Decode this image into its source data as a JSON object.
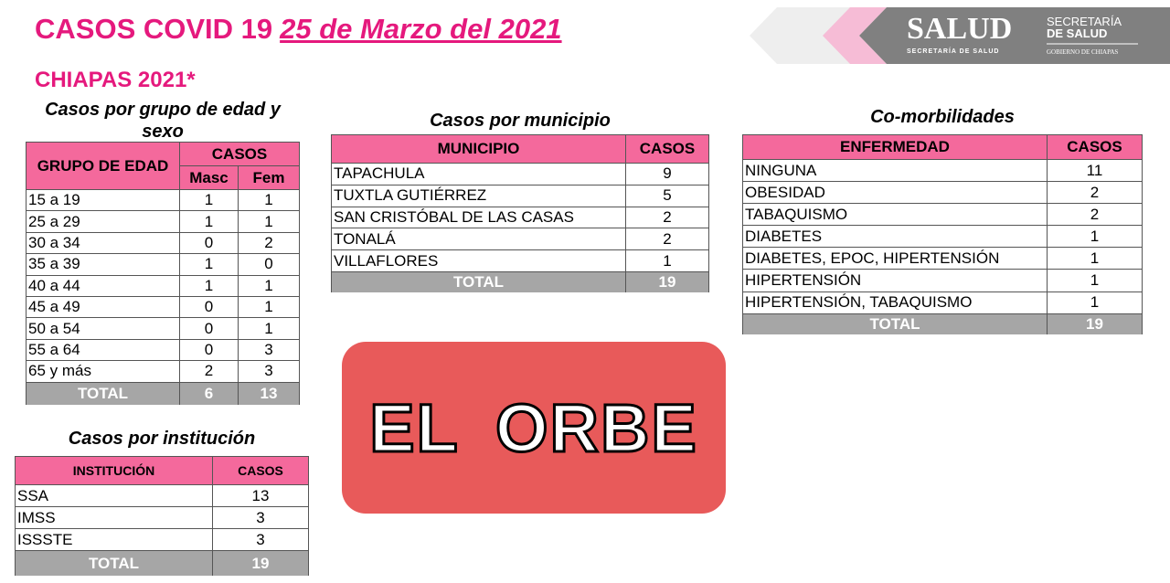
{
  "header": {
    "title": "CASOS COVID 19",
    "date": "25 de Marzo del 2021",
    "subtitle": "CHIAPAS 2021*"
  },
  "logo": {
    "main": "SALUD",
    "tagline": "SECRETARÍA DE SALUD",
    "right_line1": "SECRETARÍA",
    "right_line2": "DE SALUD",
    "right_line3": "GOBIERNO DE CHIAPAS"
  },
  "age_table": {
    "caption": "Casos por grupo de edad y sexo",
    "col_group": "GRUPO DE EDAD",
    "col_cases": "CASOS",
    "col_masc": "Masc",
    "col_fem": "Fem",
    "rows": [
      [
        "15 a 19",
        "1",
        "1"
      ],
      [
        "25 a 29",
        "1",
        "1"
      ],
      [
        "30 a 34",
        "0",
        "2"
      ],
      [
        "35 a 39",
        "1",
        "0"
      ],
      [
        "40 a 44",
        "1",
        "1"
      ],
      [
        "45 a 49",
        "0",
        "1"
      ],
      [
        "50 a 54",
        "0",
        "1"
      ],
      [
        "55 a 64",
        "0",
        "3"
      ],
      [
        "65 y más",
        "2",
        "3"
      ]
    ],
    "total": [
      "TOTAL",
      "6",
      "13"
    ]
  },
  "muni_table": {
    "caption": "Casos por municipio",
    "col1": "MUNICIPIO",
    "col2": "CASOS",
    "rows": [
      [
        "TAPACHULA",
        "9"
      ],
      [
        "TUXTLA GUTIÉRREZ",
        "5"
      ],
      [
        "SAN CRISTÓBAL DE LAS CASAS",
        "2"
      ],
      [
        "TONALÁ",
        "2"
      ],
      [
        "VILLAFLORES",
        "1"
      ]
    ],
    "total": [
      "TOTAL",
      "19"
    ]
  },
  "comorb_table": {
    "caption": "Co-morbilidades",
    "col1": "ENFERMEDAD",
    "col2": "CASOS",
    "rows": [
      [
        "NINGUNA",
        "11"
      ],
      [
        "OBESIDAD",
        "2"
      ],
      [
        "TABAQUISMO",
        "2"
      ],
      [
        "DIABETES",
        "1"
      ],
      [
        "DIABETES, EPOC, HIPERTENSIÓN",
        "1"
      ],
      [
        "HIPERTENSIÓN",
        "1"
      ],
      [
        "HIPERTENSIÓN, TABAQUISMO",
        "1"
      ]
    ],
    "total": [
      "TOTAL",
      "19"
    ]
  },
  "inst_table": {
    "caption": "Casos por institución",
    "col1": "INSTITUCIÓN",
    "col2": "CASOS",
    "rows": [
      [
        "SSA",
        "13"
      ],
      [
        "IMSS",
        "3"
      ],
      [
        "ISSSTE",
        "3"
      ]
    ],
    "total": [
      "TOTAL",
      "19"
    ]
  },
  "watermark": "EL ORBE",
  "colors": {
    "title": "#e5197d",
    "header_bg": "#f4699c",
    "total_bg": "#a6a6a6",
    "watermark_bg": "#e85a5a"
  }
}
